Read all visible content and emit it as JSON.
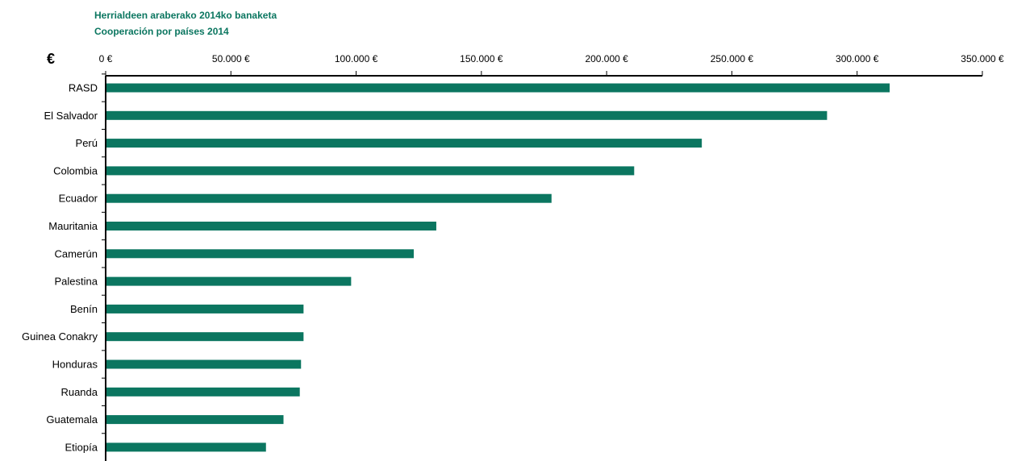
{
  "header": {
    "title_line1": "Herrialdeen araberako 2014ko banaketa",
    "title_line2": "Cooperación por países 2014",
    "currency_symbol": "€"
  },
  "colors": {
    "bar": "#0b7660",
    "title": "#0b7660",
    "axis": "#000000"
  },
  "chart_data": {
    "type": "bar",
    "orientation": "horizontal",
    "title": "Herrialdeen araberako 2014ko banaketa / Cooperación por países 2014",
    "xlabel": "€",
    "ylabel": "",
    "xlim": [
      0,
      350000
    ],
    "x_ticks": [
      0,
      50000,
      100000,
      150000,
      200000,
      250000,
      300000,
      350000
    ],
    "x_tick_labels": [
      "0 €",
      "50.000 €",
      "100.000 €",
      "150.000 €",
      "200.000 €",
      "250.000 €",
      "300.000 €",
      "350.000 €"
    ],
    "x_axis_position": "top",
    "grid": false,
    "categories": [
      "RASD",
      "El Salvador",
      "Perú",
      "Colombia",
      "Ecuador",
      "Mauritania",
      "Camerún",
      "Palestina",
      "Benín",
      "Guinea Conakry",
      "Honduras",
      "Ruanda",
      "Guatemala",
      "Etiopía"
    ],
    "values": [
      313000,
      288000,
      238000,
      211000,
      178000,
      132000,
      123000,
      98000,
      79000,
      79000,
      78000,
      77500,
      71000,
      64000
    ]
  }
}
